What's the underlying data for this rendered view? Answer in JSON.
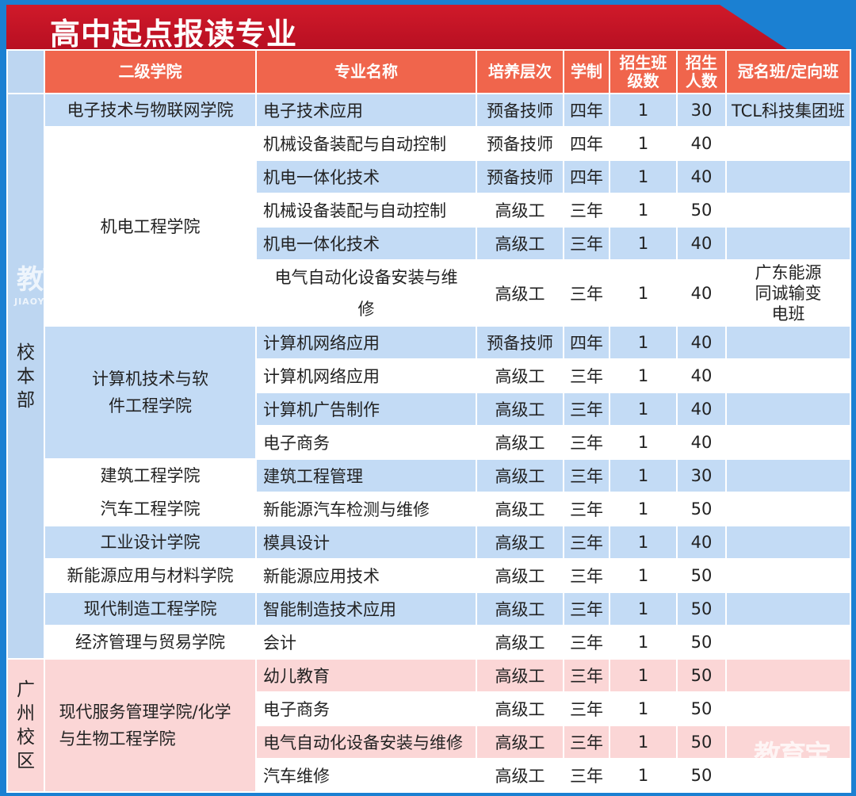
{
  "title": "高中起点报读专业",
  "headers": {
    "college": "二级学院",
    "major": "专业名称",
    "level": "培养层次",
    "years": "学制",
    "classes": "招生班级数",
    "enrollment": "招生人数",
    "sponsor": "冠名班/定向班"
  },
  "colors": {
    "header": "#f0654c",
    "banner": "#c8102e",
    "row_blue": "#c3dbf5",
    "row_pink": "#fbd6d6",
    "frame": "#1b80d2"
  },
  "campuses": [
    {
      "name": "校本部",
      "shade": "blue",
      "colleges": [
        {
          "name": "电子技术与物联网学院",
          "shade": "blue",
          "majors": [
            {
              "major": "电子技术应用",
              "level": "预备技师",
              "years": "四年",
              "classes": "1",
              "enrollment": "30",
              "sponsor": "TCL科技集团班"
            }
          ]
        },
        {
          "name": "机电工程学院",
          "shade": "white",
          "majors": [
            {
              "major": "机械设备装配与自动控制",
              "level": "预备技师",
              "years": "四年",
              "classes": "1",
              "enrollment": "40",
              "sponsor": ""
            },
            {
              "major": "机电一体化技术",
              "level": "预备技师",
              "years": "四年",
              "classes": "1",
              "enrollment": "40",
              "sponsor": ""
            },
            {
              "major": "机械设备装配与自动控制",
              "level": "高级工",
              "years": "三年",
              "classes": "1",
              "enrollment": "50",
              "sponsor": ""
            },
            {
              "major": "机电一体化技术",
              "level": "高级工",
              "years": "三年",
              "classes": "1",
              "enrollment": "40",
              "sponsor": ""
            },
            {
              "major": "电气自动化设备安装与维修",
              "level": "高级工",
              "years": "三年",
              "classes": "1",
              "enrollment": "40",
              "sponsor": "广东能源同诚输变电班",
              "tall": true
            }
          ]
        },
        {
          "name": "计算机技术与软件工程学院",
          "shade": "blue",
          "majors": [
            {
              "major": "计算机网络应用",
              "level": "预备技师",
              "years": "四年",
              "classes": "1",
              "enrollment": "40",
              "sponsor": ""
            },
            {
              "major": "计算机网络应用",
              "level": "高级工",
              "years": "三年",
              "classes": "1",
              "enrollment": "40",
              "sponsor": ""
            },
            {
              "major": "计算机广告制作",
              "level": "高级工",
              "years": "三年",
              "classes": "1",
              "enrollment": "40",
              "sponsor": ""
            },
            {
              "major": "电子商务",
              "level": "高级工",
              "years": "三年",
              "classes": "1",
              "enrollment": "40",
              "sponsor": ""
            }
          ]
        },
        {
          "name": "建筑工程学院",
          "shade": "white",
          "majors": [
            {
              "major": "建筑工程管理",
              "level": "高级工",
              "years": "三年",
              "classes": "1",
              "enrollment": "30",
              "sponsor": ""
            }
          ]
        },
        {
          "name": "汽车工程学院",
          "shade": "white",
          "majors": [
            {
              "major": "新能源汽车检测与维修",
              "level": "高级工",
              "years": "三年",
              "classes": "1",
              "enrollment": "50",
              "sponsor": ""
            }
          ]
        },
        {
          "name": "工业设计学院",
          "shade": "blue",
          "majors": [
            {
              "major": "模具设计",
              "level": "高级工",
              "years": "三年",
              "classes": "1",
              "enrollment": "40",
              "sponsor": ""
            }
          ]
        },
        {
          "name": "新能源应用与材料学院",
          "shade": "white",
          "majors": [
            {
              "major": "新能源应用技术",
              "level": "高级工",
              "years": "三年",
              "classes": "1",
              "enrollment": "50",
              "sponsor": ""
            }
          ]
        },
        {
          "name": "现代制造工程学院",
          "shade": "blue",
          "majors": [
            {
              "major": "智能制造技术应用",
              "level": "高级工",
              "years": "三年",
              "classes": "1",
              "enrollment": "50",
              "sponsor": ""
            }
          ]
        },
        {
          "name": "经济管理与贸易学院",
          "shade": "white",
          "majors": [
            {
              "major": "会计",
              "level": "高级工",
              "years": "三年",
              "classes": "1",
              "enrollment": "50",
              "sponsor": ""
            }
          ]
        }
      ]
    },
    {
      "name": "广州校区",
      "shade": "pink",
      "colleges": [
        {
          "name": "现代服务管理学院/化学与生物工程学院",
          "shade": "pink",
          "majors": [
            {
              "major": "幼儿教育",
              "level": "高级工",
              "years": "三年",
              "classes": "1",
              "enrollment": "50",
              "sponsor": ""
            },
            {
              "major": "电子商务",
              "level": "高级工",
              "years": "三年",
              "classes": "1",
              "enrollment": "50",
              "sponsor": ""
            },
            {
              "major": "电气自动化设备安装与维修",
              "level": "高级工",
              "years": "三年",
              "classes": "1",
              "enrollment": "50",
              "sponsor": ""
            },
            {
              "major": "汽车维修",
              "level": "高级工",
              "years": "三年",
              "classes": "1",
              "enrollment": "50",
              "sponsor": ""
            }
          ]
        }
      ]
    }
  ],
  "watermark": {
    "brand": "教育宝",
    "domain": "JIAOYUBAO.CN"
  }
}
